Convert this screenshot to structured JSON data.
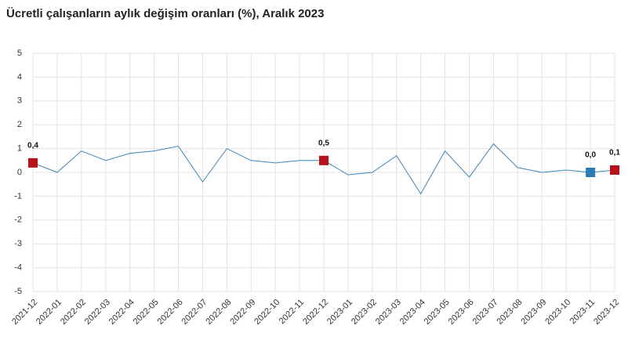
{
  "chart_data": {
    "type": "line",
    "title": "Ücretli çalışanların aylık değişim oranları (%), Aralık 2023",
    "categories": [
      "2021-12",
      "2022-01",
      "2022-02",
      "2022-03",
      "2022-04",
      "2022-05",
      "2022-06",
      "2022-07",
      "2022-08",
      "2022-09",
      "2022-10",
      "2022-11",
      "2022-12",
      "2023-01",
      "2023-02",
      "2023-03",
      "2023-04",
      "2023-05",
      "2023-06",
      "2023-07",
      "2023-08",
      "2023-09",
      "2023-10",
      "2023-11",
      "2023-12"
    ],
    "values": [
      0.4,
      0.0,
      0.9,
      0.5,
      0.8,
      0.9,
      1.1,
      -0.4,
      1.0,
      0.5,
      0.4,
      0.5,
      0.5,
      -0.1,
      0.0,
      0.7,
      -0.9,
      0.9,
      -0.2,
      1.2,
      0.2,
      0.0,
      0.1,
      0.0,
      0.1
    ],
    "value_labels": [
      "0,4",
      null,
      null,
      null,
      null,
      null,
      null,
      null,
      null,
      null,
      null,
      null,
      "0,5",
      null,
      null,
      null,
      null,
      null,
      null,
      null,
      null,
      null,
      null,
      "0,0",
      "0,1"
    ],
    "marker_colors": [
      "#b5121b",
      null,
      null,
      null,
      null,
      null,
      null,
      null,
      null,
      null,
      null,
      null,
      "#b5121b",
      null,
      null,
      null,
      null,
      null,
      null,
      null,
      null,
      null,
      null,
      "#2b7bb9",
      "#b5121b"
    ],
    "color": "#3d85b8",
    "ylim": [
      -5,
      5
    ],
    "yticks": [
      -5,
      -4,
      -3,
      -2,
      -1,
      0,
      1,
      2,
      3,
      4,
      5
    ],
    "grid": true
  }
}
